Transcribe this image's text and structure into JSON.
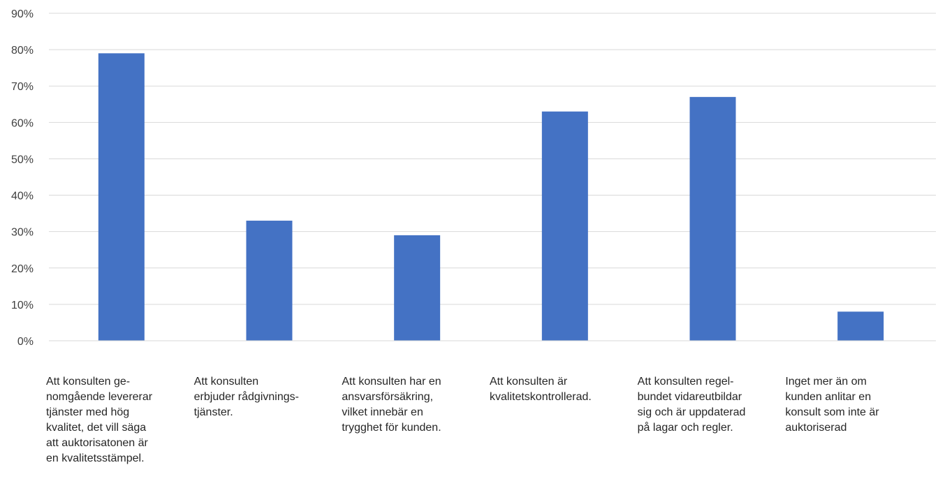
{
  "chart_data": {
    "type": "bar",
    "title": "",
    "xlabel": "",
    "ylabel": "",
    "ylim": [
      0,
      90
    ],
    "yticks": [
      0,
      10,
      20,
      30,
      40,
      50,
      60,
      70,
      80,
      90
    ],
    "ytick_labels": [
      "0%",
      "10%",
      "20%",
      "30%",
      "40%",
      "50%",
      "60%",
      "70%",
      "80%",
      "90%"
    ],
    "grid": true,
    "legend": "none",
    "bar_color": "#4472C4",
    "categories": [
      "Att konsulten ge-\nnomgående levererar\ntjänster med hög\nkvalitet, det vill säga\natt auktorisatonen är\nen kvalitetsstämpel.",
      "Att konsulten\nerbjuder rådgivnings-\ntjänster.",
      "Att konsulten har en\nansvarsförsäkring,\nvilket innebär en\ntrygghet för kunden.",
      "Att konsulten är\nkvalitetskontrollerad.",
      "Att konsulten regel-\nbundet vidareutbildar\nsig och är uppdaterad\npå lagar och regler.",
      "Inget mer än om\nkunden anlitar en\nkonsult som inte är\nauktoriserad"
    ],
    "values": [
      79,
      33,
      29,
      63,
      67,
      8
    ]
  }
}
